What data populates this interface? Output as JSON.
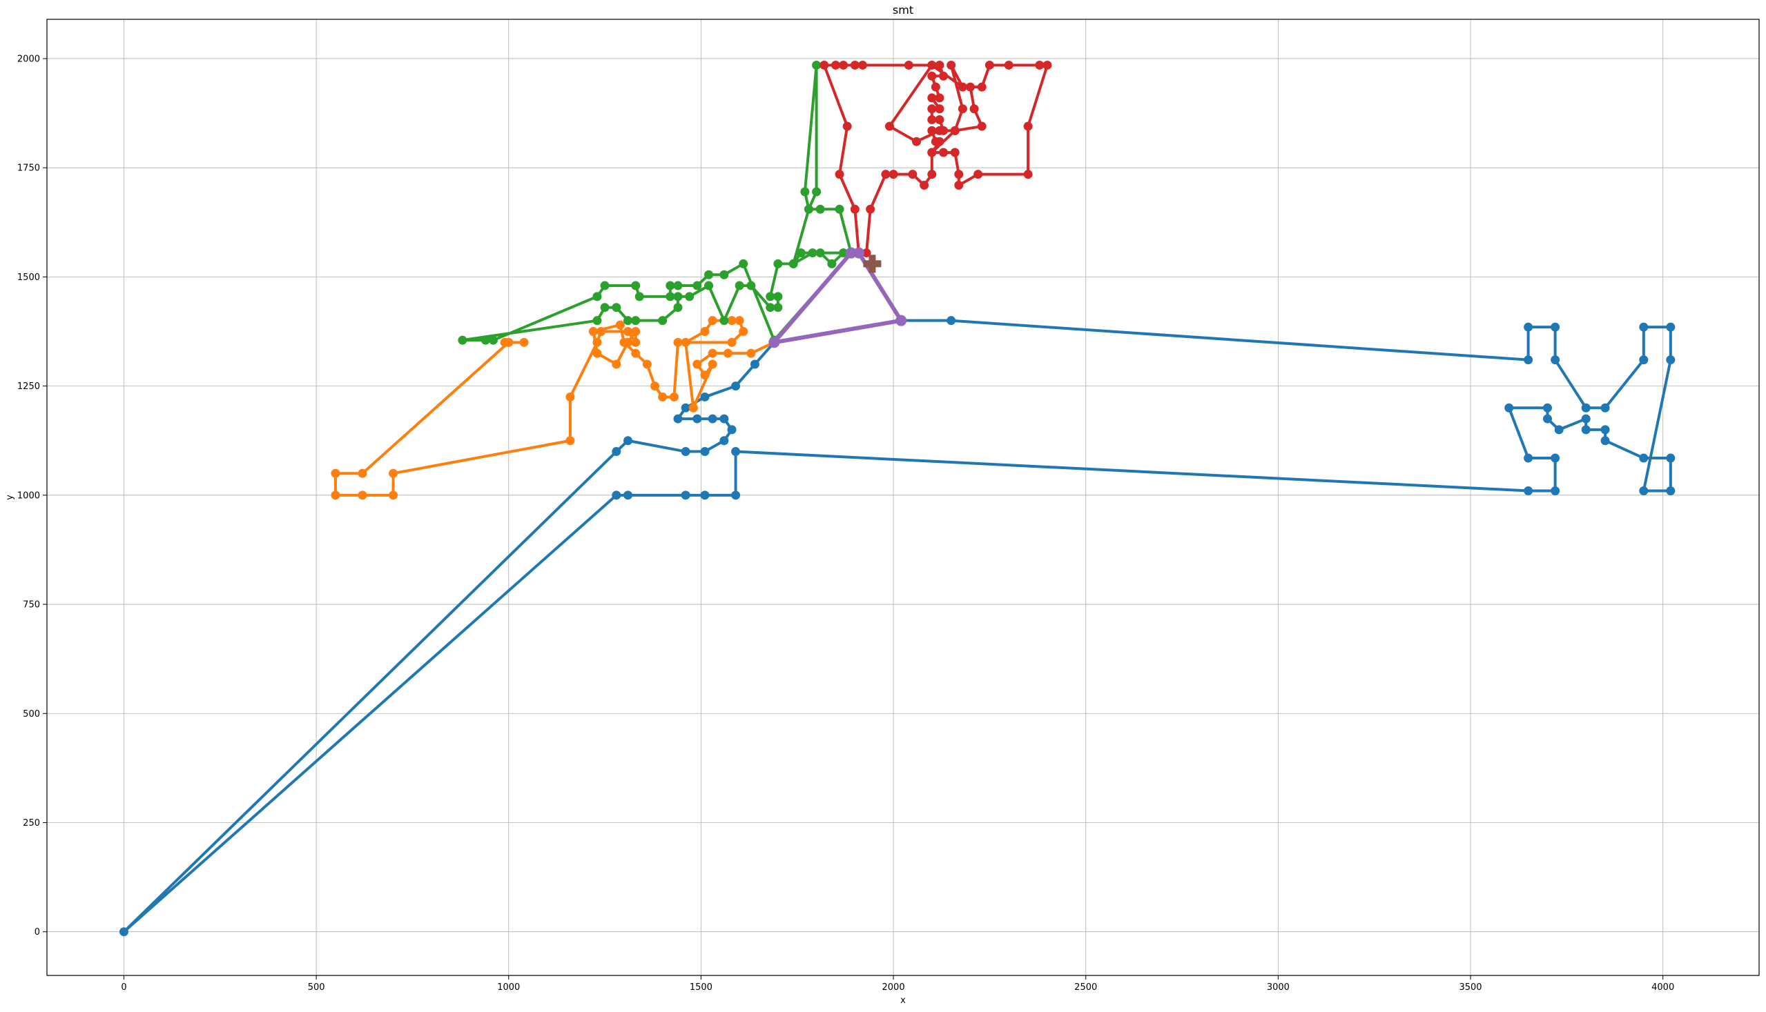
{
  "chart_data": {
    "type": "line",
    "title": "smt",
    "xlabel": "x",
    "ylabel": "y",
    "xlim": [
      -200,
      4250
    ],
    "ylim": [
      -100,
      2090
    ],
    "grid": true,
    "x_ticks": [
      0,
      500,
      1000,
      1500,
      2000,
      2500,
      3000,
      3500,
      4000
    ],
    "x_tick_labels": [
      "0",
      "500",
      "1000",
      "1500",
      "2000",
      "2500",
      "3000",
      "3500",
      "4000"
    ],
    "y_ticks": [
      0,
      250,
      500,
      750,
      1000,
      1250,
      1500,
      1750,
      2000
    ],
    "y_tick_labels": [
      "0",
      "250",
      "500",
      "750",
      "1000",
      "1250",
      "1500",
      "1750",
      "2000"
    ],
    "colors": {
      "blue": "#1f77b4",
      "orange": "#ff7f0e",
      "green": "#2ca02c",
      "red": "#d62728",
      "purple": "#9467bd",
      "brown": "#8c564b"
    },
    "series": [
      {
        "color": "#1f77b4",
        "points": [
          [
            2020,
            1400
          ],
          [
            2150,
            1400
          ],
          [
            3650,
            1310
          ],
          [
            3650,
            1385
          ],
          [
            3720,
            1385
          ],
          [
            3720,
            1310
          ],
          [
            3800,
            1200
          ],
          [
            3850,
            1200
          ],
          [
            3950,
            1310
          ],
          [
            3950,
            1385
          ],
          [
            4020,
            1385
          ],
          [
            4020,
            1310
          ],
          [
            3950,
            1010
          ],
          [
            4020,
            1010
          ],
          [
            4020,
            1085
          ],
          [
            3950,
            1085
          ],
          [
            3850,
            1125
          ],
          [
            3850,
            1150
          ],
          [
            3800,
            1150
          ],
          [
            3800,
            1175
          ],
          [
            3730,
            1150
          ],
          [
            3700,
            1175
          ],
          [
            3700,
            1200
          ],
          [
            3600,
            1200
          ],
          [
            3650,
            1085
          ],
          [
            3720,
            1085
          ],
          [
            3720,
            1010
          ],
          [
            3650,
            1010
          ],
          [
            1590,
            1100
          ],
          [
            1590,
            1000
          ],
          [
            1510,
            1000
          ],
          [
            1460,
            1000
          ],
          [
            1310,
            1000
          ],
          [
            1280,
            1000
          ],
          [
            0,
            0
          ],
          [
            1280,
            1100
          ],
          [
            1310,
            1125
          ],
          [
            1460,
            1100
          ],
          [
            1510,
            1100
          ],
          [
            1560,
            1125
          ],
          [
            1580,
            1150
          ],
          [
            1560,
            1175
          ],
          [
            1530,
            1175
          ],
          [
            1490,
            1175
          ],
          [
            1440,
            1175
          ],
          [
            1460,
            1200
          ],
          [
            1510,
            1225
          ],
          [
            1590,
            1250
          ],
          [
            1640,
            1300
          ],
          [
            1690,
            1350
          ],
          [
            2020,
            1400
          ]
        ]
      },
      {
        "color": "#ff7f0e",
        "points": [
          [
            1690,
            1350
          ],
          [
            1690,
            1350
          ],
          [
            1630,
            1325
          ],
          [
            1570,
            1325
          ],
          [
            1530,
            1325
          ],
          [
            1490,
            1300
          ],
          [
            1510,
            1275
          ],
          [
            1530,
            1300
          ],
          [
            1480,
            1200
          ],
          [
            1460,
            1350
          ],
          [
            1510,
            1375
          ],
          [
            1530,
            1400
          ],
          [
            1580,
            1400
          ],
          [
            1600,
            1400
          ],
          [
            1610,
            1375
          ],
          [
            1580,
            1350
          ],
          [
            1440,
            1350
          ],
          [
            1430,
            1225
          ],
          [
            1400,
            1225
          ],
          [
            1380,
            1250
          ],
          [
            1360,
            1300
          ],
          [
            1330,
            1325
          ],
          [
            1300,
            1350
          ],
          [
            1290,
            1390
          ],
          [
            1220,
            1375
          ],
          [
            1230,
            1325
          ],
          [
            1280,
            1300
          ],
          [
            1310,
            1350
          ],
          [
            1330,
            1375
          ],
          [
            1330,
            1350
          ],
          [
            1310,
            1375
          ],
          [
            1240,
            1375
          ],
          [
            1230,
            1350
          ],
          [
            1160,
            1225
          ],
          [
            1160,
            1125
          ],
          [
            700,
            1050
          ],
          [
            700,
            1000
          ],
          [
            620,
            1000
          ],
          [
            550,
            1000
          ],
          [
            550,
            1050
          ],
          [
            620,
            1050
          ],
          [
            1000,
            1350
          ],
          [
            1040,
            1350
          ],
          [
            1000,
            1350
          ],
          [
            990,
            1350
          ]
        ]
      },
      {
        "color": "#2ca02c",
        "points": [
          [
            1890,
            1555
          ],
          [
            1860,
            1655
          ],
          [
            1810,
            1655
          ],
          [
            1780,
            1655
          ],
          [
            1800,
            1695
          ],
          [
            1800,
            1985
          ],
          [
            1770,
            1695
          ],
          [
            1780,
            1655
          ],
          [
            1740,
            1530
          ],
          [
            1760,
            1555
          ],
          [
            1810,
            1555
          ],
          [
            1840,
            1530
          ],
          [
            1870,
            1555
          ],
          [
            1870,
            1555
          ],
          [
            1790,
            1555
          ],
          [
            1740,
            1530
          ],
          [
            1700,
            1530
          ],
          [
            1680,
            1455
          ],
          [
            1700,
            1455
          ],
          [
            1700,
            1430
          ],
          [
            1680,
            1430
          ],
          [
            1630,
            1480
          ],
          [
            1600,
            1480
          ],
          [
            1560,
            1400
          ],
          [
            1520,
            1480
          ],
          [
            1470,
            1455
          ],
          [
            1440,
            1455
          ],
          [
            1440,
            1430
          ],
          [
            1400,
            1400
          ],
          [
            1330,
            1400
          ],
          [
            1310,
            1400
          ],
          [
            1280,
            1430
          ],
          [
            1250,
            1430
          ],
          [
            1230,
            1400
          ],
          [
            880,
            1355
          ],
          [
            940,
            1355
          ],
          [
            960,
            1355
          ],
          [
            1230,
            1455
          ],
          [
            1250,
            1480
          ],
          [
            1330,
            1480
          ],
          [
            1340,
            1455
          ],
          [
            1420,
            1455
          ],
          [
            1420,
            1480
          ],
          [
            1440,
            1480
          ],
          [
            1490,
            1480
          ],
          [
            1520,
            1505
          ],
          [
            1560,
            1505
          ],
          [
            1610,
            1530
          ],
          [
            1690,
            1355
          ],
          [
            1890,
            1555
          ]
        ]
      },
      {
        "color": "#d62728",
        "points": [
          [
            1910,
            1555
          ],
          [
            1900,
            1655
          ],
          [
            1860,
            1735
          ],
          [
            1880,
            1845
          ],
          [
            1820,
            1985
          ],
          [
            1850,
            1985
          ],
          [
            1870,
            1985
          ],
          [
            1900,
            1985
          ],
          [
            1920,
            1985
          ],
          [
            2040,
            1985
          ],
          [
            2100,
            1985
          ],
          [
            2120,
            1985
          ],
          [
            2130,
            1960
          ],
          [
            2100,
            1960
          ],
          [
            2110,
            1935
          ],
          [
            2120,
            1910
          ],
          [
            2100,
            1910
          ],
          [
            2120,
            1885
          ],
          [
            2100,
            1885
          ],
          [
            2100,
            1860
          ],
          [
            2120,
            1860
          ],
          [
            2130,
            1835
          ],
          [
            2100,
            1835
          ],
          [
            2110,
            1810
          ],
          [
            2120,
            1810
          ],
          [
            2100,
            1785
          ],
          [
            2130,
            1785
          ],
          [
            2160,
            1785
          ],
          [
            2170,
            1735
          ],
          [
            2170,
            1710
          ],
          [
            2220,
            1735
          ],
          [
            2350,
            1735
          ],
          [
            2350,
            1845
          ],
          [
            2400,
            1985
          ],
          [
            2380,
            1985
          ],
          [
            2300,
            1985
          ],
          [
            2250,
            1985
          ],
          [
            2230,
            1935
          ],
          [
            2200,
            1935
          ],
          [
            2210,
            1885
          ],
          [
            2230,
            1845
          ],
          [
            2160,
            1835
          ],
          [
            2120,
            1835
          ],
          [
            2060,
            1810
          ],
          [
            1990,
            1845
          ],
          [
            2100,
            1985
          ],
          [
            2180,
            1935
          ],
          [
            2150,
            1985
          ],
          [
            2180,
            1885
          ],
          [
            2160,
            1835
          ],
          [
            2100,
            1785
          ],
          [
            2100,
            1735
          ],
          [
            2080,
            1710
          ],
          [
            2050,
            1735
          ],
          [
            2000,
            1735
          ],
          [
            1980,
            1735
          ],
          [
            1940,
            1655
          ],
          [
            1930,
            1555
          ]
        ]
      },
      {
        "color": "#9467bd",
        "points": [
          [
            1890,
            1555
          ],
          [
            1910,
            1555
          ],
          [
            2020,
            1400
          ],
          [
            1690,
            1350
          ],
          [
            1890,
            1555
          ]
        ]
      }
    ],
    "marker": {
      "color": "#8c564b",
      "shape": "plus",
      "point": [
        1945,
        1530
      ]
    }
  }
}
